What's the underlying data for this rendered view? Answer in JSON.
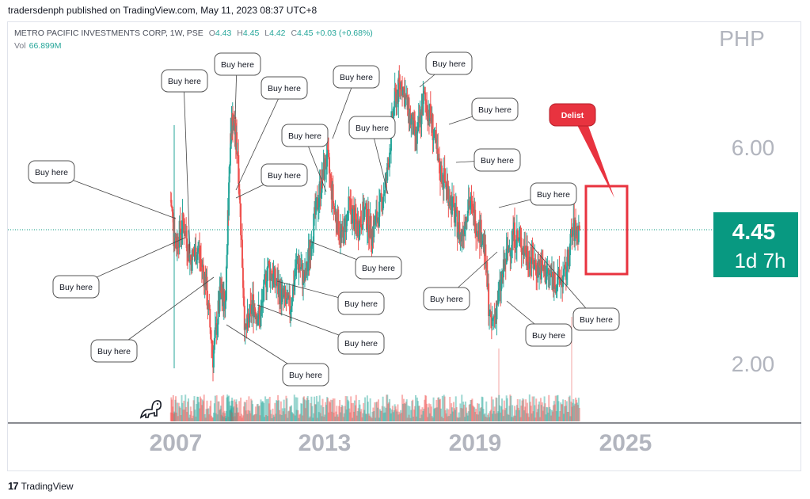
{
  "published": "tradersdenph published on TradingView.com, May 11, 2023 08:37 UTC+8",
  "header": {
    "symbol": "METRO PACIFIC INVESTMENTS CORP, 1W, PSE",
    "o_label": "O",
    "o": "4.43",
    "h_label": "H",
    "h": "4.45",
    "l_label": "L",
    "l": "4.42",
    "c_label": "C",
    "c": "4.45",
    "change": "+0.03 (+0.68%)"
  },
  "volume": {
    "label": "Vol",
    "value": "66.899M"
  },
  "footer": {
    "brand": "TradingView"
  },
  "colors": {
    "up": "#26a69a",
    "down": "#ef5350",
    "price_badge": "#089981",
    "delist": "#e8333f",
    "axis_text": "#b2b5be"
  },
  "chart_data": {
    "type": "candlestick",
    "currency": "PHP",
    "y_ticks": [
      "6.00",
      "2.00"
    ],
    "x_ticks": [
      "2007",
      "2013",
      "2019",
      "2025"
    ],
    "ylim": [
      1.0,
      7.5
    ],
    "last_price": "4.45",
    "countdown": "1d 7h",
    "series": [
      {
        "name": "close",
        "x": [
          2006.8,
          2007.0,
          2007.3,
          2007.6,
          2007.9,
          2008.2,
          2008.5,
          2008.8,
          2009.0,
          2009.2,
          2009.3,
          2009.5,
          2009.8,
          2010.1,
          2010.4,
          2010.7,
          2011.0,
          2011.3,
          2011.6,
          2011.9,
          2012.2,
          2012.5,
          2012.8,
          2013.1,
          2013.4,
          2013.7,
          2014.0,
          2014.3,
          2014.6,
          2014.9,
          2015.2,
          2015.5,
          2015.8,
          2016.1,
          2016.4,
          2016.7,
          2017.0,
          2017.3,
          2017.6,
          2017.9,
          2018.2,
          2018.5,
          2018.8,
          2019.1,
          2019.4,
          2019.7,
          2020.0,
          2020.3,
          2020.6,
          2020.9,
          2021.2,
          2021.5,
          2021.8,
          2022.1,
          2022.4,
          2022.7,
          2023.0,
          2023.3
        ],
        "values": [
          5.0,
          4.2,
          4.6,
          3.9,
          4.1,
          3.5,
          2.1,
          3.3,
          3.1,
          6.2,
          6.5,
          5.9,
          2.5,
          3.1,
          2.8,
          3.8,
          3.5,
          3.2,
          3.0,
          3.9,
          3.5,
          4.4,
          5.2,
          5.8,
          4.8,
          4.3,
          4.9,
          4.5,
          4.8,
          4.4,
          4.8,
          5.4,
          6.8,
          7.2,
          6.6,
          6.1,
          6.9,
          6.5,
          5.6,
          5.3,
          4.8,
          4.3,
          5.0,
          4.6,
          4.3,
          2.6,
          3.2,
          3.9,
          4.4,
          4.2,
          4.0,
          3.8,
          3.7,
          3.6,
          3.5,
          3.6,
          4.45,
          4.45
        ]
      }
    ],
    "annotations": [
      "Buy here",
      "Buy here",
      "Buy here",
      "Buy here",
      "Buy here",
      "Buy here",
      "Buy here",
      "Buy here",
      "Buy here",
      "Buy here",
      "Buy here",
      "Buy here",
      "Buy here",
      "Buy here",
      "Buy here",
      "Buy here",
      "Buy here",
      "Buy here",
      "Buy here",
      "Buy here",
      "Buy here",
      "Delist"
    ]
  }
}
